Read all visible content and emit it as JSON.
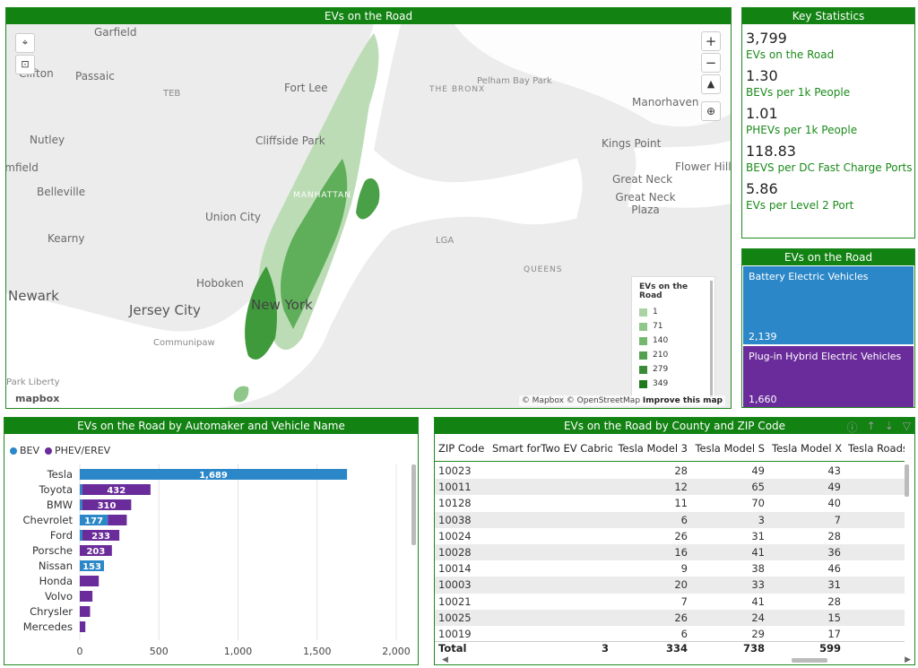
{
  "map": {
    "title": "EVs on the Road",
    "labels": [
      {
        "text": "Garfield",
        "cls": ""
      },
      {
        "text": "Clifton",
        "cls": ""
      },
      {
        "text": "Passaic",
        "cls": ""
      },
      {
        "text": "TEB",
        "cls": "small"
      },
      {
        "text": "Fort Lee",
        "cls": ""
      },
      {
        "text": "THE BRONX",
        "cls": "caps"
      },
      {
        "text": "Pelham Bay Park",
        "cls": "small"
      },
      {
        "text": "Manorhaven",
        "cls": ""
      },
      {
        "text": "Nutley",
        "cls": ""
      },
      {
        "text": "Cliffside Park",
        "cls": ""
      },
      {
        "text": "Kings Point",
        "cls": ""
      },
      {
        "text": "Flower Hill",
        "cls": ""
      },
      {
        "text": "Bloomfield",
        "cls": ""
      },
      {
        "text": "Belleville",
        "cls": ""
      },
      {
        "text": "Great Neck",
        "cls": ""
      },
      {
        "text": "Great Neck Plaza",
        "cls": ""
      },
      {
        "text": "MANHATTAN",
        "cls": "caps"
      },
      {
        "text": "Union City",
        "cls": ""
      },
      {
        "text": "Kearny",
        "cls": ""
      },
      {
        "text": "LGA",
        "cls": "small"
      },
      {
        "text": "Hoboken",
        "cls": ""
      },
      {
        "text": "QUEENS",
        "cls": "caps"
      },
      {
        "text": "Newark",
        "cls": "big"
      },
      {
        "text": "New York",
        "cls": "big"
      },
      {
        "text": "Jersey City",
        "cls": "big"
      },
      {
        "text": "Communipaw",
        "cls": "small"
      },
      {
        "text": "Park Liberty",
        "cls": "small"
      }
    ],
    "legend": {
      "title": "EVs on the Road",
      "items": [
        {
          "label": "1",
          "color": "#a9d3a3"
        },
        {
          "label": "71",
          "color": "#8fc689"
        },
        {
          "label": "140",
          "color": "#74b86f"
        },
        {
          "label": "210",
          "color": "#559f51"
        },
        {
          "label": "279",
          "color": "#3a8a37"
        },
        {
          "label": "349",
          "color": "#1f7a1d"
        }
      ]
    },
    "attribution": "© Mapbox © OpenStreetMap",
    "improve": "Improve this map",
    "logo": "mapbox",
    "zoom_in": "+",
    "zoom_out": "−"
  },
  "stats": {
    "title": "Key Statistics",
    "items": [
      {
        "value": "3,799",
        "label": "EVs on the Road"
      },
      {
        "value": "1.30",
        "label": "BEVs per 1k People"
      },
      {
        "value": "1.01",
        "label": "PHEVs per 1k People"
      },
      {
        "value": "118.83",
        "label": "BEVS per DC Fast Charge Ports"
      },
      {
        "value": "5.86",
        "label": "EVs per Level 2 Port"
      }
    ]
  },
  "treemap": {
    "title": "EVs on the Road",
    "boxes": [
      {
        "label": "Battery Electric Vehicles",
        "value": "2,139",
        "color": "#2b87c8"
      },
      {
        "label": "Plug-in Hybrid Electric Vehicles",
        "value": "1,660",
        "color": "#6a2c9a"
      }
    ]
  },
  "bar": {
    "title": "EVs on the Road by Automaker and Vehicle Name",
    "legend": [
      {
        "label": "BEV",
        "color": "#2b87c8"
      },
      {
        "label": "PHEV/EREV",
        "color": "#6a2c9a"
      }
    ]
  },
  "chart_data": {
    "type": "bar",
    "orientation": "horizontal",
    "stacked": true,
    "categories": [
      "Tesla",
      "Toyota",
      "BMW",
      "Chevrolet",
      "Ford",
      "Porsche",
      "Nissan",
      "Honda",
      "Volvo",
      "Chrysler",
      "Mercedes"
    ],
    "series": [
      {
        "name": "BEV",
        "color": "#2b87c8",
        "values": [
          1689,
          15,
          15,
          177,
          17,
          0,
          153,
          0,
          0,
          0,
          0
        ]
      },
      {
        "name": "PHEV/EREV",
        "color": "#6a2c9a",
        "values": [
          0,
          432,
          310,
          120,
          233,
          203,
          0,
          120,
          80,
          65,
          35
        ]
      }
    ],
    "value_labels": [
      {
        "category": "Tesla",
        "series": "BEV",
        "text": "1,689"
      },
      {
        "category": "Toyota",
        "series": "PHEV/EREV",
        "text": "432"
      },
      {
        "category": "BMW",
        "series": "PHEV/EREV",
        "text": "310"
      },
      {
        "category": "Chevrolet",
        "series": "BEV",
        "text": "177"
      },
      {
        "category": "Ford",
        "series": "PHEV/EREV",
        "text": "233"
      },
      {
        "category": "Porsche",
        "series": "PHEV/EREV",
        "text": "203"
      },
      {
        "category": "Nissan",
        "series": "BEV",
        "text": "153"
      }
    ],
    "xlim": [
      0,
      2000
    ],
    "xticks": [
      0,
      500,
      1000,
      1500,
      2000
    ],
    "xtick_labels": [
      "0",
      "500",
      "1,000",
      "1,500",
      "2,000"
    ],
    "grid": true,
    "legend": "top-left"
  },
  "table": {
    "title": "EVs on the Road by County and ZIP Code",
    "columns": [
      "ZIP Code",
      "Smart forTwo EV Cabrio",
      "Tesla Model 3",
      "Tesla Model S",
      "Tesla Model X",
      "Tesla Roadster"
    ],
    "rows": [
      [
        "10023",
        "",
        "28",
        "49",
        "43",
        ""
      ],
      [
        "10011",
        "",
        "12",
        "65",
        "49",
        ""
      ],
      [
        "10128",
        "",
        "11",
        "70",
        "40",
        ""
      ],
      [
        "10038",
        "",
        "6",
        "3",
        "7",
        ""
      ],
      [
        "10024",
        "",
        "26",
        "31",
        "28",
        ""
      ],
      [
        "10028",
        "",
        "16",
        "41",
        "36",
        ""
      ],
      [
        "10014",
        "",
        "9",
        "38",
        "46",
        ""
      ],
      [
        "10003",
        "",
        "20",
        "33",
        "31",
        ""
      ],
      [
        "10021",
        "",
        "7",
        "41",
        "28",
        ""
      ],
      [
        "10025",
        "",
        "26",
        "24",
        "15",
        ""
      ],
      [
        "10019",
        "",
        "6",
        "29",
        "17",
        ""
      ]
    ],
    "total": [
      "Total",
      "3",
      "334",
      "738",
      "599",
      ""
    ]
  }
}
